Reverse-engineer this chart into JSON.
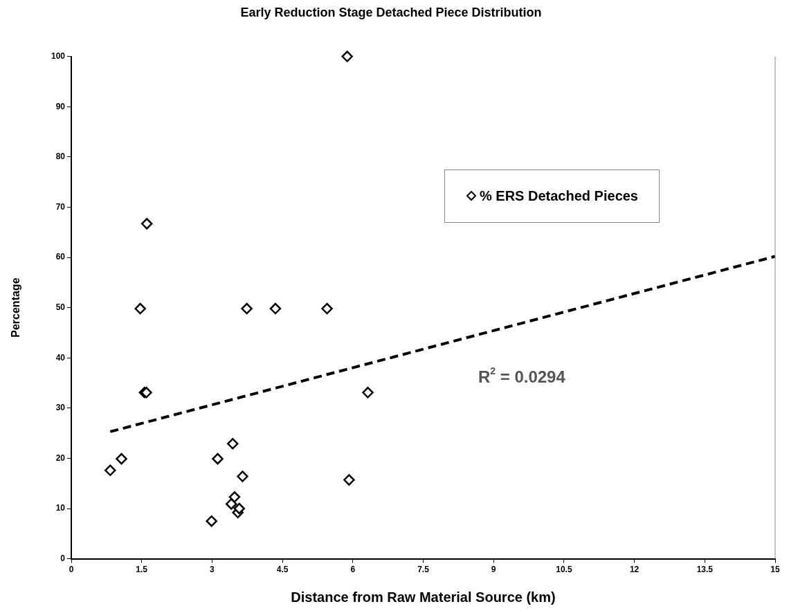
{
  "chart_data": {
    "type": "scatter",
    "title": "Early Reduction Stage Detached Piece Distribution",
    "xlabel": "Distance from Raw Material Source (km)",
    "ylabel": "Percentage",
    "series": [
      {
        "name": "% ERS Detached Pieces",
        "color": "#000000",
        "marker": "diamond",
        "x": [
          0.83,
          1.07,
          1.47,
          1.56,
          1.6,
          1.61,
          2.99,
          3.12,
          3.41,
          3.44,
          3.48,
          3.55,
          3.58,
          3.65,
          3.74,
          4.35,
          5.45,
          5.88,
          5.92,
          6.32
        ],
        "values": [
          17.6,
          19.9,
          49.8,
          33.1,
          33.1,
          66.7,
          7.5,
          19.9,
          10.9,
          22.9,
          12.3,
          9.2,
          10,
          16.4,
          49.8,
          49.8,
          49.8,
          100,
          15.7,
          33.1
        ]
      },
      {
        "type": "line",
        "color": "#000000",
        "line_style": "dashed",
        "marker": "none",
        "x": [
          0.83,
          15
        ],
        "values": [
          25.3,
          60.2
        ]
      }
    ],
    "annotations": [
      "R$^{2}$ = 0.0294"
    ],
    "xlim": [
      0,
      15
    ],
    "xticks": [
      0,
      1.5,
      3,
      4.5,
      6,
      7.5,
      9,
      10.5,
      12,
      13.5,
      15
    ],
    "ylim": [
      0,
      100
    ],
    "yticks": [
      0,
      10,
      20,
      30,
      40,
      50,
      60,
      70,
      80,
      90,
      100
    ],
    "grid": false,
    "legend": "top right"
  }
}
